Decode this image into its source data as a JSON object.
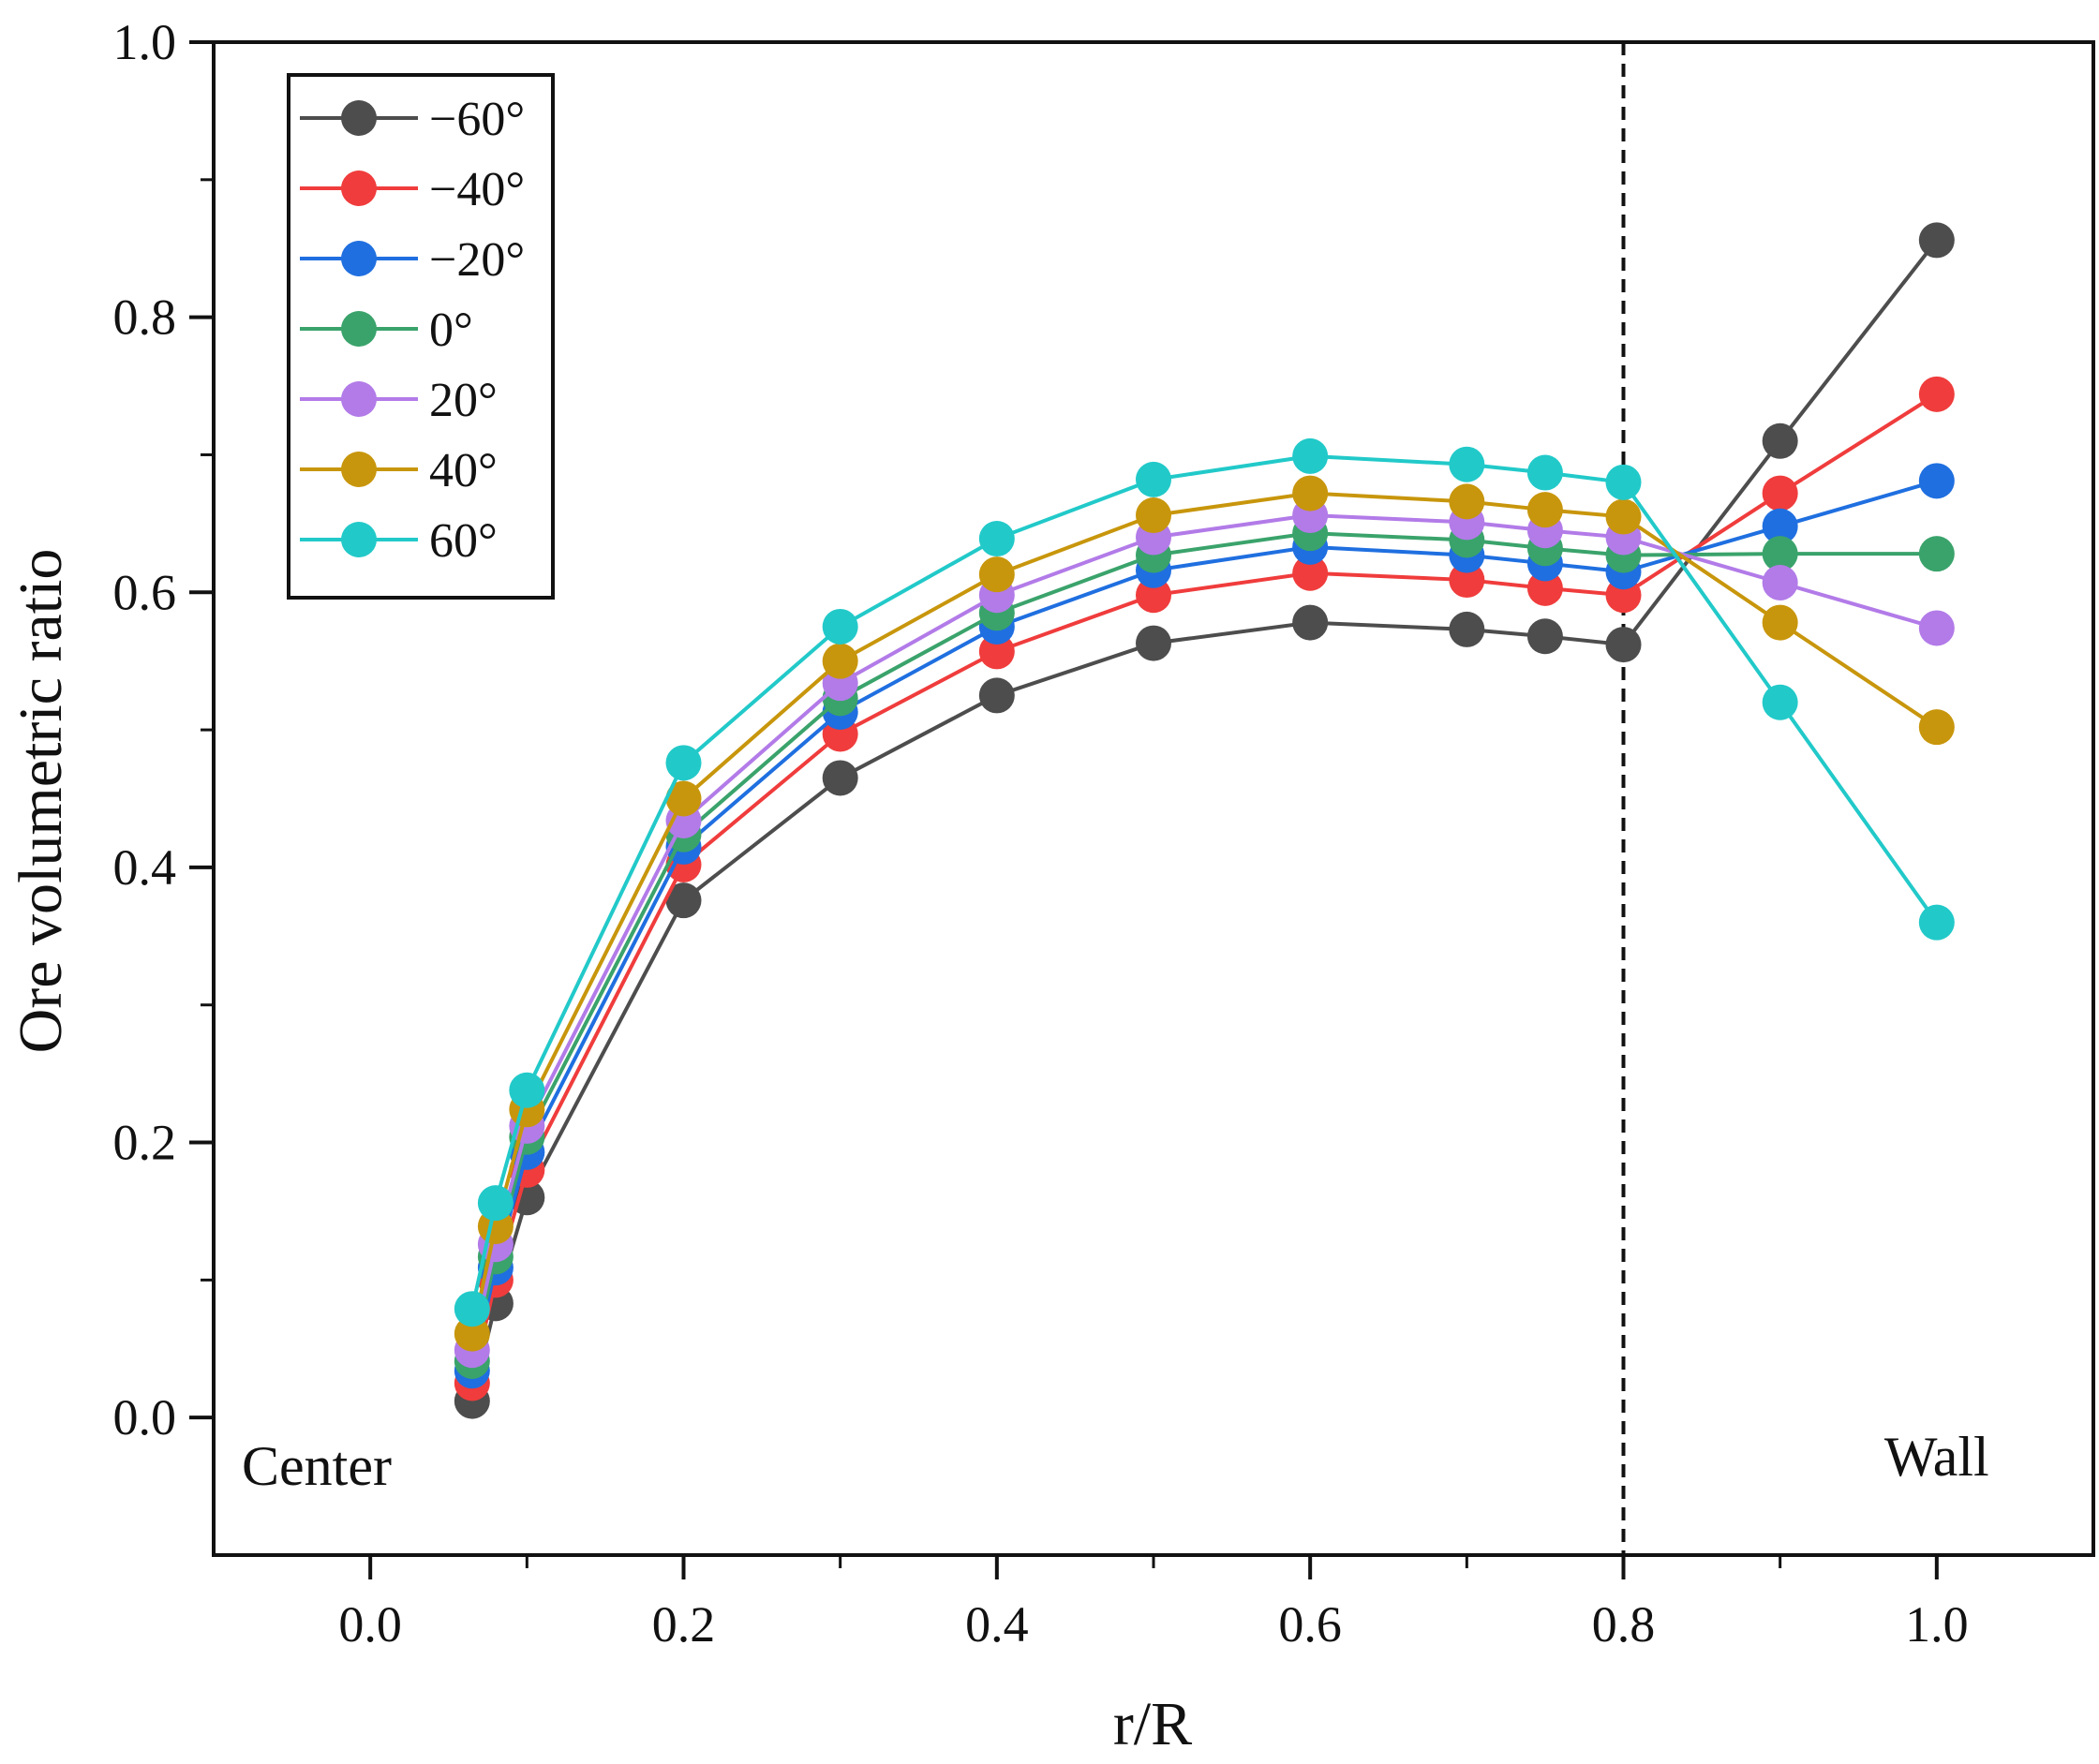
{
  "chart_data": {
    "type": "line",
    "title": "",
    "xlabel": "r/R",
    "ylabel": "Ore volumetric ratio",
    "xlim": [
      -0.1,
      1.1
    ],
    "ylim": [
      -0.1,
      1.0
    ],
    "xticks": [
      0.0,
      0.2,
      0.4,
      0.6,
      0.8,
      1.0
    ],
    "xtick_labels": [
      "0.0",
      "0.2",
      "0.4",
      "0.6",
      "0.8",
      "1.0"
    ],
    "yticks": [
      0.0,
      0.2,
      0.4,
      0.6,
      0.8,
      1.0
    ],
    "ytick_labels": [
      "0.0",
      "0.2",
      "0.4",
      "0.6",
      "0.8",
      "1.0"
    ],
    "grid": false,
    "legend_position": "top-left",
    "x": [
      0.065,
      0.08,
      0.1,
      0.2,
      0.3,
      0.4,
      0.5,
      0.6,
      0.7,
      0.75,
      0.8,
      0.9,
      1.0
    ],
    "series": [
      {
        "name": "−60°",
        "color": "#4d4d4d",
        "values": [
          0.012,
          0.083,
          0.16,
          0.376,
          0.465,
          0.525,
          0.563,
          0.578,
          0.573,
          0.568,
          0.562,
          0.71,
          0.856
        ]
      },
      {
        "name": "−40°",
        "color": "#f03c3c",
        "values": [
          0.025,
          0.1,
          0.18,
          0.402,
          0.497,
          0.557,
          0.598,
          0.614,
          0.609,
          0.603,
          0.598,
          0.672,
          0.744
        ]
      },
      {
        "name": "−20°",
        "color": "#1f6fe0",
        "values": [
          0.034,
          0.109,
          0.193,
          0.415,
          0.513,
          0.575,
          0.616,
          0.633,
          0.627,
          0.621,
          0.615,
          0.648,
          0.681
        ]
      },
      {
        "name": "0°",
        "color": "#3aa36b",
        "values": [
          0.041,
          0.117,
          0.204,
          0.424,
          0.523,
          0.585,
          0.627,
          0.643,
          0.638,
          0.632,
          0.627,
          0.628,
          0.628
        ]
      },
      {
        "name": "20°",
        "color": "#b27be8",
        "values": [
          0.049,
          0.126,
          0.212,
          0.434,
          0.534,
          0.598,
          0.64,
          0.656,
          0.651,
          0.645,
          0.64,
          0.607,
          0.574
        ]
      },
      {
        "name": "40°",
        "color": "#c8960c",
        "values": [
          0.061,
          0.139,
          0.224,
          0.45,
          0.55,
          0.613,
          0.656,
          0.672,
          0.666,
          0.66,
          0.655,
          0.578,
          0.502
        ]
      },
      {
        "name": "60°",
        "color": "#22c9c9",
        "values": [
          0.079,
          0.156,
          0.238,
          0.476,
          0.575,
          0.639,
          0.682,
          0.699,
          0.693,
          0.687,
          0.68,
          0.52,
          0.36
        ]
      }
    ],
    "reference_line": {
      "x": 0.8,
      "style": "dashed",
      "color": "#111111"
    },
    "annotations": [
      {
        "text": "Center",
        "position": "bottom-left"
      },
      {
        "text": "Wall",
        "position": "bottom-right"
      }
    ]
  }
}
